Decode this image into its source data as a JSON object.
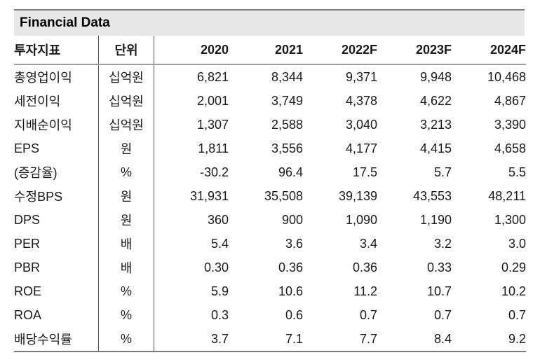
{
  "table": {
    "title": "Financial Data",
    "columns": [
      "투자지표",
      "단위",
      "2020",
      "2021",
      "2022F",
      "2023F",
      "2024F"
    ],
    "rows": [
      {
        "label": "총영업이익",
        "unit": "십억원",
        "values": [
          "6,821",
          "8,344",
          "9,371",
          "9,948",
          "10,468"
        ]
      },
      {
        "label": "세전이익",
        "unit": "십억원",
        "values": [
          "2,001",
          "3,749",
          "4,378",
          "4,622",
          "4,867"
        ]
      },
      {
        "label": "지배순이익",
        "unit": "십억원",
        "values": [
          "1,307",
          "2,588",
          "3,040",
          "3,213",
          "3,390"
        ]
      },
      {
        "label": "EPS",
        "unit": "원",
        "values": [
          "1,811",
          "3,556",
          "4,177",
          "4,415",
          "4,658"
        ]
      },
      {
        "label": "(증감율)",
        "unit": "%",
        "values": [
          "-30.2",
          "96.4",
          "17.5",
          "5.7",
          "5.5"
        ]
      },
      {
        "label": "수정BPS",
        "unit": "원",
        "values": [
          "31,931",
          "35,508",
          "39,139",
          "43,553",
          "48,211"
        ]
      },
      {
        "label": "DPS",
        "unit": "원",
        "values": [
          "360",
          "900",
          "1,090",
          "1,190",
          "1,300"
        ]
      },
      {
        "label": "PER",
        "unit": "배",
        "values": [
          "5.4",
          "3.6",
          "3.4",
          "3.2",
          "3.0"
        ]
      },
      {
        "label": "PBR",
        "unit": "배",
        "values": [
          "0.30",
          "0.36",
          "0.36",
          "0.33",
          "0.29"
        ]
      },
      {
        "label": "ROE",
        "unit": "%",
        "values": [
          "5.9",
          "10.6",
          "11.2",
          "10.7",
          "10.2"
        ]
      },
      {
        "label": "ROA",
        "unit": "%",
        "values": [
          "0.3",
          "0.6",
          "0.7",
          "0.7",
          "0.7"
        ]
      },
      {
        "label": "배당수익률",
        "unit": "%",
        "values": [
          "3.7",
          "7.1",
          "7.7",
          "8.4",
          "9.2"
        ]
      }
    ],
    "colors": {
      "title_bar_background": "#e7e7e7",
      "outer_border": "#7a7a7a",
      "header_underline": "#a0a0a0",
      "column_divider": "#595959",
      "text": "#1a1a1a"
    }
  }
}
